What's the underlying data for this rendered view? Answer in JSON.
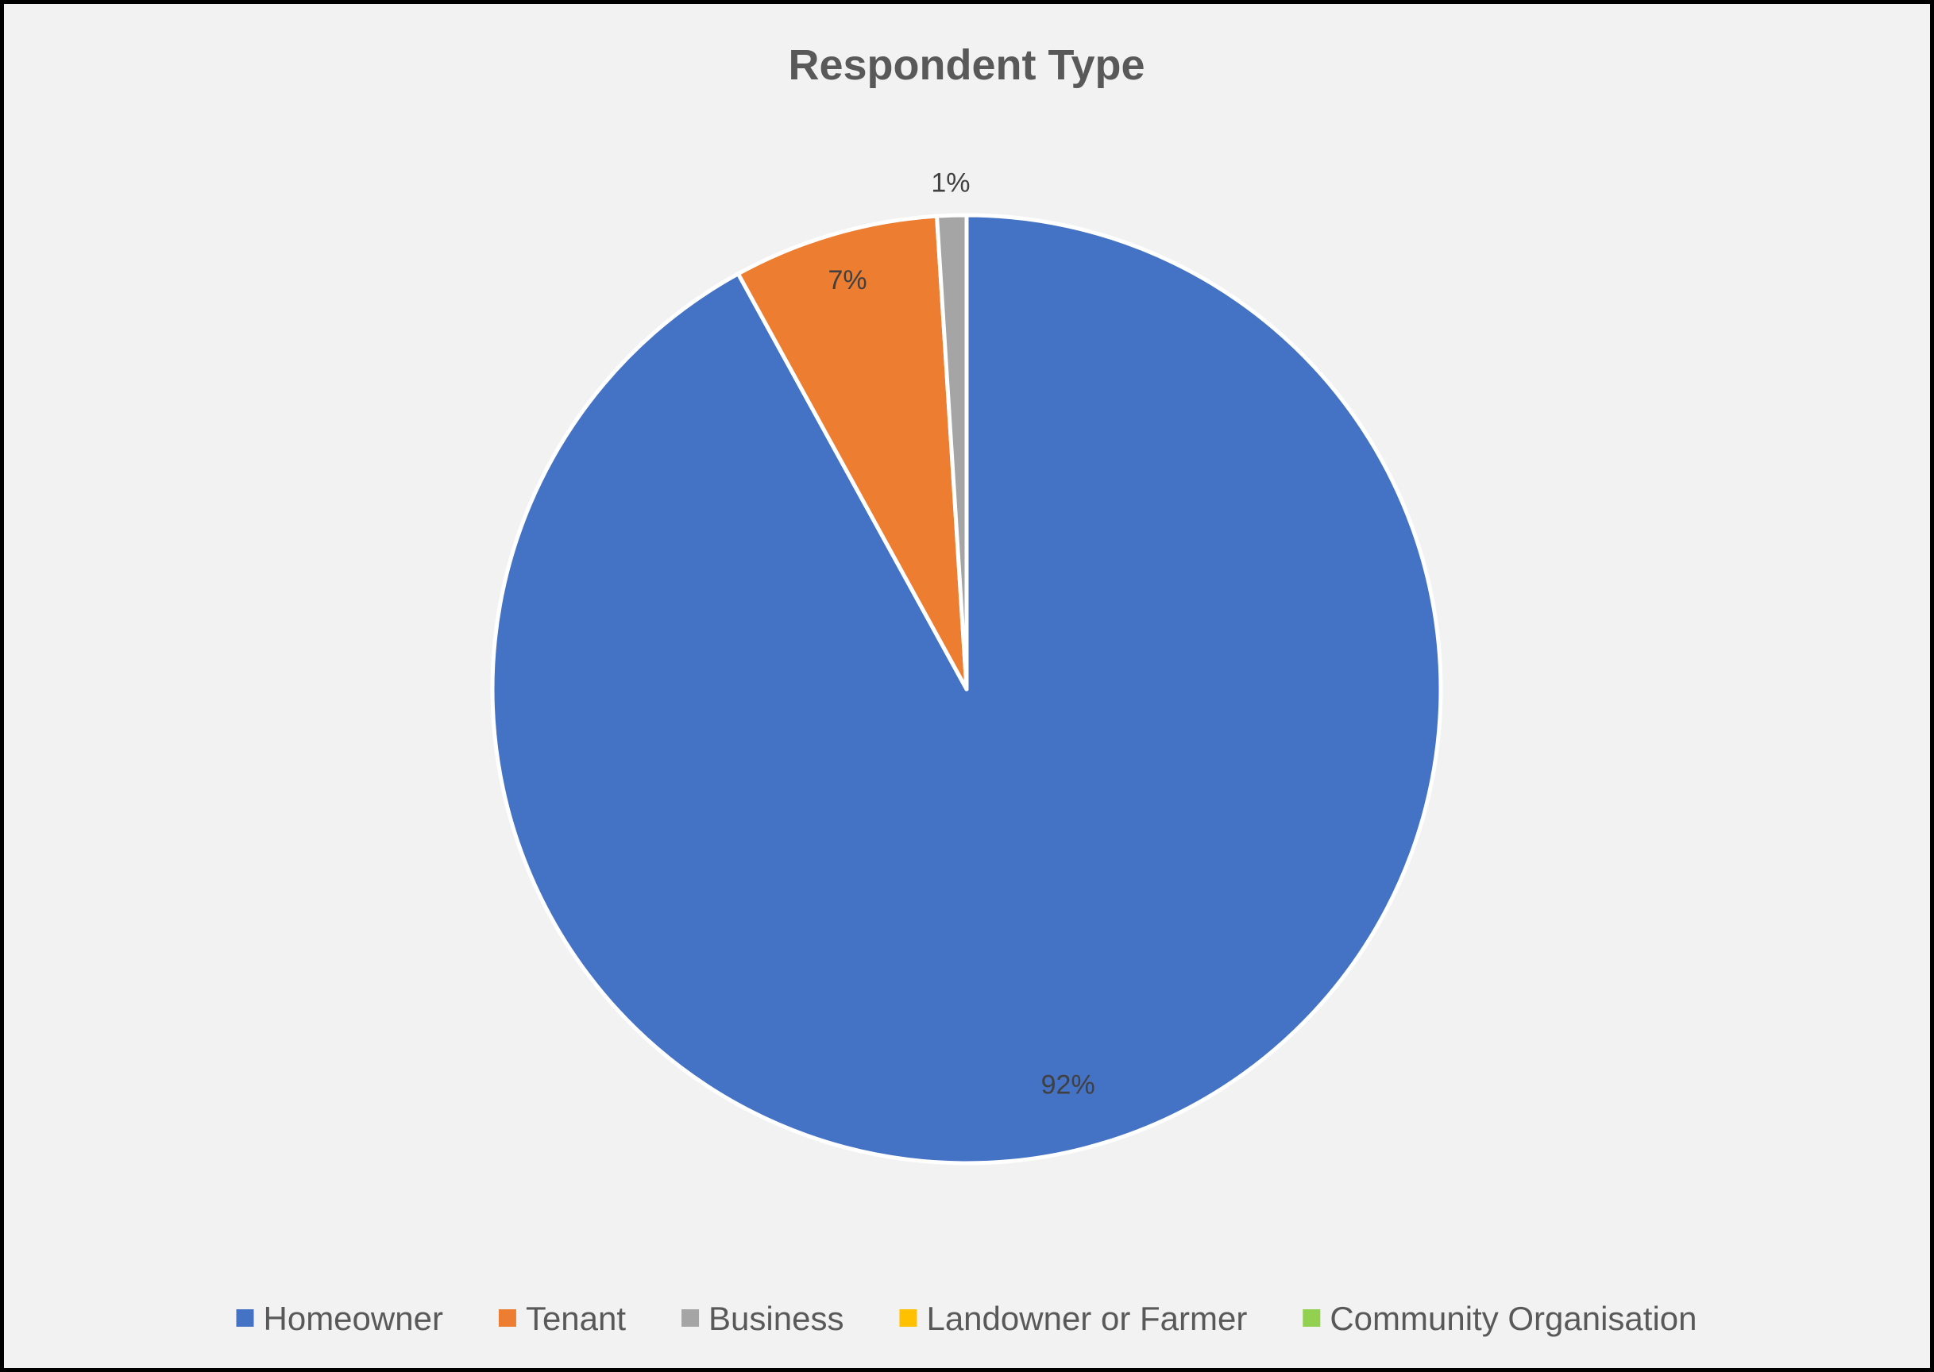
{
  "chart_data": {
    "type": "pie",
    "title": "Respondent Type",
    "categories": [
      "Homeowner",
      "Tenant",
      "Business",
      "Landowner or Farmer",
      "Community Organisation"
    ],
    "values": [
      92,
      7,
      1,
      0,
      0
    ],
    "data_labels": [
      "92%",
      "7%",
      "1%",
      "",
      ""
    ],
    "colors": [
      "#4472c4",
      "#ed7d31",
      "#a5a5a5",
      "#ffc000",
      "#92d050"
    ],
    "start_angle": "12 o'clock",
    "direction": "clockwise",
    "legend_position": "bottom"
  }
}
